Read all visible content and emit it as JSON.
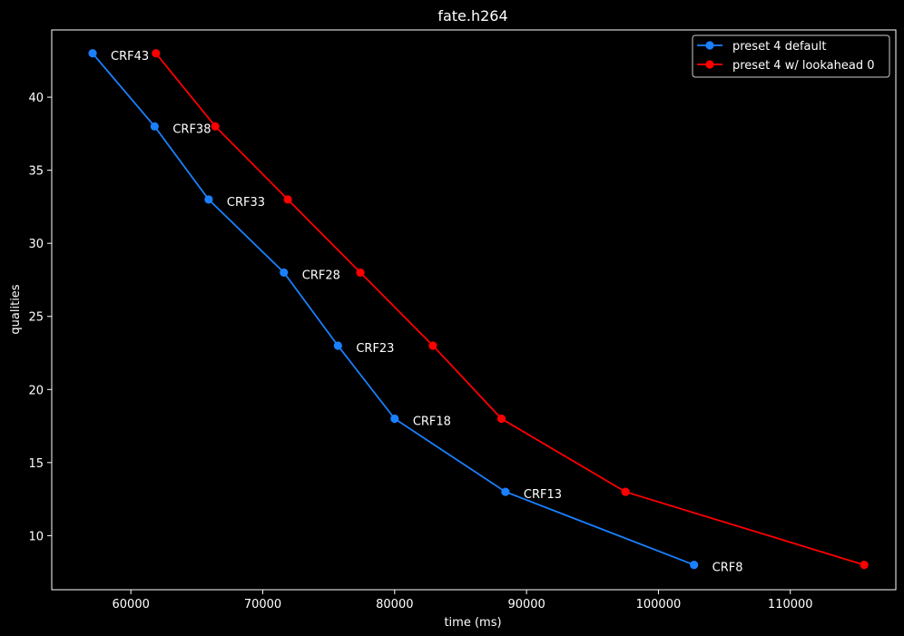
{
  "chart_data": {
    "type": "line",
    "title": "fate.h264",
    "xlabel": "time (ms)",
    "ylabel": "qualities",
    "xlim": [
      54000,
      118000
    ],
    "ylim": [
      6.3,
      44.6
    ],
    "xticks": [
      60000,
      70000,
      80000,
      90000,
      100000,
      110000
    ],
    "xtick_labels": [
      "60000",
      "70000",
      "80000",
      "90000",
      "100000",
      "110000"
    ],
    "yticks": [
      10,
      15,
      20,
      25,
      30,
      35,
      40
    ],
    "ytick_labels": [
      "10",
      "15",
      "20",
      "25",
      "30",
      "35",
      "40"
    ],
    "grid": false,
    "legend_position": "top-right",
    "series": [
      {
        "name": "preset 4 default",
        "color": "#1a80ff",
        "points": [
          {
            "x": 57100,
            "y": 43
          },
          {
            "x": 61800,
            "y": 38
          },
          {
            "x": 65900,
            "y": 33
          },
          {
            "x": 71600,
            "y": 28
          },
          {
            "x": 75700,
            "y": 23
          },
          {
            "x": 80000,
            "y": 18
          },
          {
            "x": 88400,
            "y": 13
          },
          {
            "x": 102700,
            "y": 8
          }
        ]
      },
      {
        "name": "preset 4 w/ lookahead 0",
        "color": "#ff0000",
        "points": [
          {
            "x": 61900,
            "y": 43
          },
          {
            "x": 66400,
            "y": 38
          },
          {
            "x": 71900,
            "y": 33
          },
          {
            "x": 77400,
            "y": 28
          },
          {
            "x": 82900,
            "y": 23
          },
          {
            "x": 88100,
            "y": 18
          },
          {
            "x": 97500,
            "y": 13
          },
          {
            "x": 115600,
            "y": 8
          }
        ]
      }
    ],
    "annotations": [
      {
        "text": "CRF43",
        "x": 57100,
        "y": 43
      },
      {
        "text": "CRF38",
        "x": 61800,
        "y": 38
      },
      {
        "text": "CRF33",
        "x": 65900,
        "y": 33
      },
      {
        "text": "CRF28",
        "x": 71600,
        "y": 28
      },
      {
        "text": "CRF23",
        "x": 75700,
        "y": 23
      },
      {
        "text": "CRF18",
        "x": 80000,
        "y": 18
      },
      {
        "text": "CRF13",
        "x": 88400,
        "y": 13
      },
      {
        "text": "CRF8",
        "x": 102700,
        "y": 8
      }
    ]
  }
}
